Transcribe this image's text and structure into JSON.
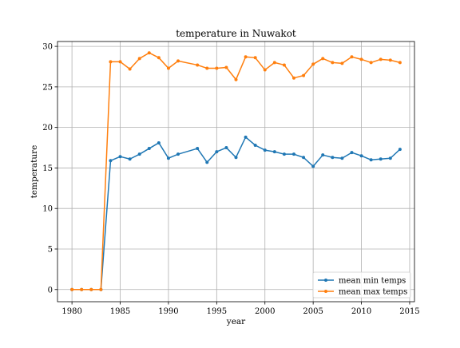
{
  "chart_data": {
    "type": "line",
    "title": "temperature in Nuwakot",
    "xlabel": "year",
    "ylabel": "temperature",
    "xlim": [
      1978.5,
      2015.5
    ],
    "ylim": [
      -1.5,
      30.6
    ],
    "xticks": [
      1980,
      1985,
      1990,
      1995,
      2000,
      2005,
      2010,
      2015
    ],
    "yticks": [
      0,
      5,
      10,
      15,
      20,
      25,
      30
    ],
    "grid": true,
    "legend_position": "lower-right",
    "x": [
      1980,
      1981,
      1982,
      1983,
      1984,
      1985,
      1986,
      1987,
      1988,
      1989,
      1990,
      1991,
      1993,
      1994,
      1995,
      1996,
      1997,
      1998,
      1999,
      2000,
      2001,
      2002,
      2003,
      2004,
      2005,
      2006,
      2007,
      2008,
      2009,
      2010,
      2011,
      2012,
      2013,
      2014
    ],
    "series": [
      {
        "name": "mean min temps",
        "color": "#1f77b4",
        "values": [
          0,
          0,
          0,
          0,
          15.9,
          16.4,
          16.1,
          16.7,
          17.4,
          18.1,
          16.2,
          16.7,
          17.4,
          15.7,
          17.0,
          17.5,
          16.3,
          18.8,
          17.8,
          17.2,
          17.0,
          16.7,
          16.7,
          16.3,
          15.2,
          16.6,
          16.3,
          16.2,
          16.9,
          16.5,
          16.0,
          16.1,
          16.2,
          17.3
        ]
      },
      {
        "name": "mean max temps",
        "color": "#ff7f0e",
        "values": [
          0,
          0,
          0,
          0,
          28.1,
          28.1,
          27.2,
          28.5,
          29.2,
          28.6,
          27.3,
          28.2,
          27.7,
          27.3,
          27.3,
          27.4,
          25.9,
          28.7,
          28.6,
          27.1,
          28.0,
          27.7,
          26.1,
          26.4,
          27.8,
          28.5,
          28.0,
          27.9,
          28.7,
          28.4,
          28.0,
          28.4,
          28.3,
          28.0
        ]
      }
    ]
  }
}
